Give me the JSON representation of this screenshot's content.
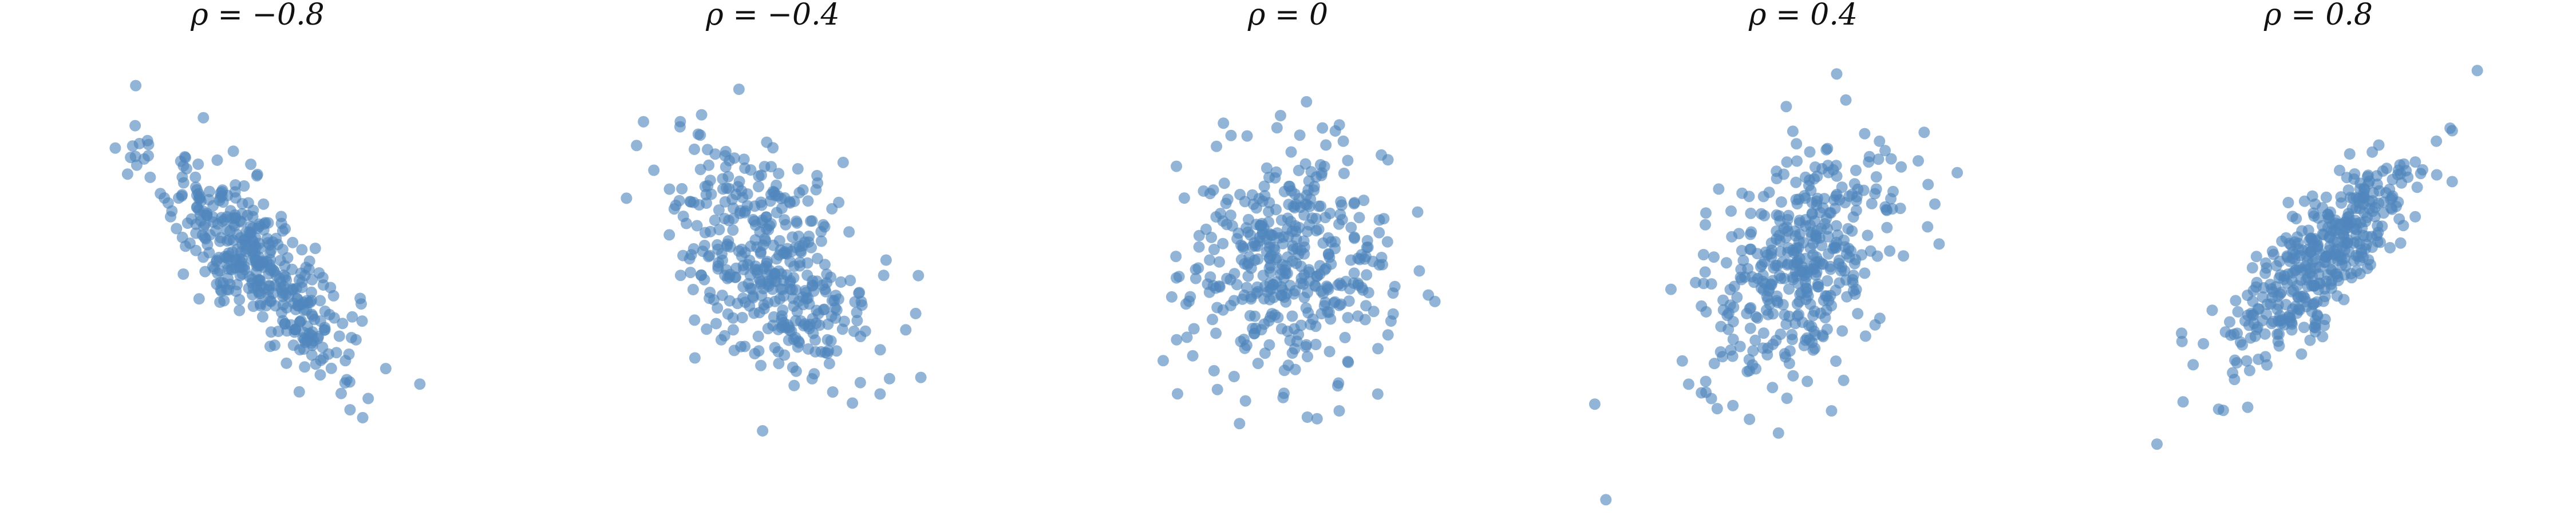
{
  "colors": {
    "point": "#4f86bd",
    "background": "#ffffff",
    "text": "#111111"
  },
  "chart_data": [
    {
      "type": "scatter",
      "title": "ρ = −0.8",
      "rho": -0.8,
      "n_points": 400,
      "grid": false,
      "axes": "hidden"
    },
    {
      "type": "scatter",
      "title": "ρ = −0.4",
      "rho": -0.4,
      "n_points": 400,
      "grid": false,
      "axes": "hidden"
    },
    {
      "type": "scatter",
      "title": "ρ = 0",
      "rho": 0.0,
      "n_points": 400,
      "grid": false,
      "axes": "hidden"
    },
    {
      "type": "scatter",
      "title": "ρ = 0.4",
      "rho": 0.4,
      "n_points": 400,
      "grid": false,
      "axes": "hidden"
    },
    {
      "type": "scatter",
      "title": "ρ = 0.8",
      "rho": 0.8,
      "n_points": 400,
      "grid": false,
      "axes": "hidden"
    }
  ]
}
